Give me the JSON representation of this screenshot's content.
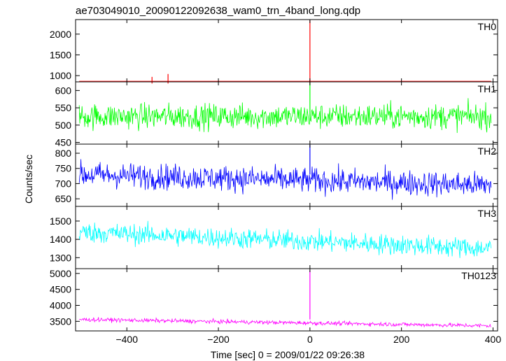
{
  "title": "ae703049010_20090122092638_wam0_trn_4band_long.qdp",
  "chart_data": {
    "type": "line",
    "title": "ae703049010_20090122092638_wam0_trn_4band_long.qdp",
    "xlabel": "Time [sec] 0 = 2009/01/22 09:26:38",
    "ylabel": "Counts/sec",
    "xlim": [
      -512,
      410
    ],
    "x_ticks": [
      -400,
      -200,
      0,
      200,
      400
    ],
    "x_tick_labels": [
      "−400",
      "−200",
      "0",
      "200",
      "400"
    ],
    "panels": [
      {
        "name": "TH0",
        "color": "#ff0000",
        "ylim": [
          850,
          2350
        ],
        "y_ticks": [
          1000,
          1500,
          2000
        ],
        "baseline": 810,
        "noise": 22,
        "trend": 0,
        "spikes": [
          {
            "x": 0,
            "y": 2330
          },
          {
            "x": -310,
            "y": 1040
          },
          {
            "x": -345,
            "y": 970
          }
        ]
      },
      {
        "name": "TH1",
        "color": "#00ff00",
        "ylim": [
          445,
          625
        ],
        "y_ticks": [
          450,
          500,
          550,
          600
        ],
        "baseline": 525,
        "noise": 26,
        "trend": 0,
        "spikes": [
          {
            "x": 0,
            "y": 622
          }
        ]
      },
      {
        "name": "TH2",
        "color": "#0000ff",
        "ylim": [
          625,
          830
        ],
        "y_ticks": [
          650,
          700,
          750,
          800
        ],
        "baseline": 730,
        "noise": 30,
        "trend": -35,
        "spikes": [
          {
            "x": 0,
            "y": 828
          }
        ]
      },
      {
        "name": "TH3",
        "color": "#00ffff",
        "ylim": [
          1240,
          1580
        ],
        "y_ticks": [
          1300,
          1400,
          1500
        ],
        "baseline": 1440,
        "noise": 40,
        "trend": -90,
        "spikes": []
      },
      {
        "name": "TH0123",
        "color": "#ff00ff",
        "ylim": [
          3200,
          5150
        ],
        "y_ticks": [
          3500,
          4000,
          4500,
          5000
        ],
        "baseline": 3560,
        "noise": 45,
        "trend": -200,
        "spikes": [
          {
            "x": 0,
            "y": 5100
          }
        ]
      }
    ]
  }
}
